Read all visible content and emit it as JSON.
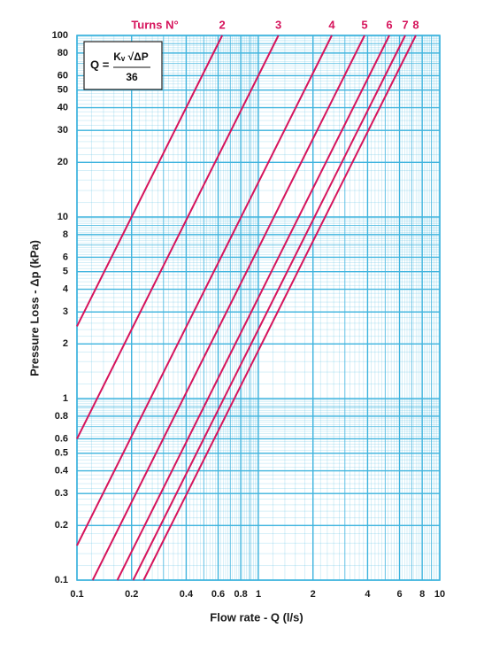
{
  "chart_data": {
    "type": "line",
    "legend_title": "Turns N°",
    "xlabel": "Flow rate - Q (l/s)",
    "ylabel": "Pressure Loss  - Δp (kPa)",
    "formula": {
      "lhs": "Q =",
      "numerator": "Kᵥ √ΔP",
      "denominator": "36"
    },
    "log_x": true,
    "log_y": true,
    "grid": true,
    "minor_grid": true,
    "grid_color": "#3fb4de",
    "xlim": [
      0.1,
      10
    ],
    "ylim": [
      0.1,
      100
    ],
    "xticks": [
      0.1,
      0.2,
      0.4,
      0.6,
      0.8,
      1,
      2,
      4,
      6,
      8,
      10
    ],
    "yticks": [
      0.1,
      0.2,
      0.3,
      0.4,
      0.5,
      0.6,
      0.8,
      1,
      2,
      3,
      4,
      5,
      6,
      8,
      10,
      20,
      30,
      40,
      50,
      60,
      80,
      100
    ],
    "series": [
      {
        "name": "2",
        "color": "#d6145c",
        "x": [
          0.1,
          0.632
        ],
        "values": [
          2.5,
          100
        ]
      },
      {
        "name": "3",
        "color": "#d6145c",
        "x": [
          0.1,
          1.29
        ],
        "values": [
          0.6,
          100
        ]
      },
      {
        "name": "4",
        "color": "#d6145c",
        "x": [
          0.1,
          2.54
        ],
        "values": [
          0.155,
          100
        ]
      },
      {
        "name": "5",
        "color": "#d6145c",
        "x": [
          0.122,
          3.85
        ],
        "values": [
          0.1,
          100
        ]
      },
      {
        "name": "6",
        "color": "#d6145c",
        "x": [
          0.167,
          5.27
        ],
        "values": [
          0.1,
          100
        ]
      },
      {
        "name": "7",
        "color": "#d6145c",
        "x": [
          0.204,
          6.45
        ],
        "values": [
          0.1,
          100
        ]
      },
      {
        "name": "8",
        "color": "#d6145c",
        "x": [
          0.233,
          7.38
        ],
        "values": [
          0.1,
          100
        ]
      }
    ]
  }
}
